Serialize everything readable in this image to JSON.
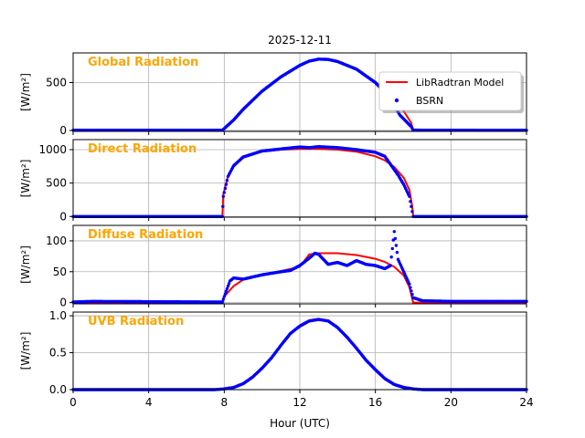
{
  "figure": {
    "title": "2025-12-11",
    "xlabel": "Hour (UTC)"
  },
  "colors": {
    "model": "#ff0000",
    "measured": "#0000ff",
    "panel_label": "#ffa500",
    "grid": "#b0b0b0",
    "axis": "#000000"
  },
  "chart_data": [
    {
      "type": "line",
      "label": "Global Radiation",
      "ylabel": "[W/m²]",
      "xlim": [
        0,
        24
      ],
      "ylim": [
        -10,
        810
      ],
      "xticks": [
        0,
        4,
        8,
        12,
        16,
        20,
        24
      ],
      "yticks": [
        0,
        500
      ],
      "ytick_labels": [
        "0",
        "500"
      ],
      "legend": {
        "position": "top-right",
        "entries": [
          "LibRadtran Model",
          "BSRN"
        ]
      },
      "series": [
        {
          "name": "LibRadtran Model",
          "x": [
            0,
            7.9,
            8.0,
            8.5,
            9,
            10,
            11,
            12,
            12.5,
            13,
            13.5,
            14,
            15,
            16,
            16.5,
            17,
            17.5,
            17.9,
            18.0,
            24
          ],
          "y": [
            0,
            0,
            18,
            115,
            230,
            415,
            565,
            680,
            720,
            740,
            738,
            718,
            640,
            505,
            420,
            315,
            200,
            80,
            0,
            0
          ]
        },
        {
          "name": "BSRN",
          "x": [
            0,
            7.9,
            8.0,
            8.5,
            9,
            10,
            11,
            12,
            12.5,
            13,
            13.5,
            14,
            15,
            16,
            16.5,
            17,
            17.3,
            17.6,
            17.9,
            18.0,
            24
          ],
          "y": [
            2,
            2,
            20,
            110,
            220,
            410,
            560,
            680,
            725,
            745,
            742,
            720,
            640,
            500,
            400,
            260,
            160,
            100,
            40,
            3,
            1
          ]
        }
      ]
    },
    {
      "type": "line",
      "label": "Direct Radiation",
      "ylabel": "[W/m²]",
      "xlim": [
        0,
        24
      ],
      "ylim": [
        -10,
        1150
      ],
      "xticks": [
        0,
        4,
        8,
        12,
        16,
        20,
        24
      ],
      "yticks": [
        0,
        500,
        1000
      ],
      "ytick_labels": [
        "0",
        "500",
        "1000"
      ],
      "series": [
        {
          "name": "LibRadtran Model",
          "x": [
            0,
            7.9,
            7.95,
            8.2,
            8.5,
            9,
            10,
            11,
            12,
            13,
            14,
            15,
            16,
            16.5,
            17,
            17.5,
            17.8,
            17.95,
            18.0,
            24
          ],
          "y": [
            0,
            0,
            330,
            610,
            760,
            880,
            970,
            1000,
            1010,
            1010,
            1000,
            970,
            900,
            840,
            740,
            580,
            400,
            150,
            0,
            0
          ]
        },
        {
          "name": "BSRN",
          "x": [
            0,
            7.9,
            7.95,
            8.2,
            8.5,
            9,
            10,
            11,
            12,
            12.5,
            13,
            14,
            15,
            16,
            16.5,
            17,
            17.2,
            17.5,
            17.8,
            18.0,
            24
          ],
          "y": [
            0,
            0,
            300,
            600,
            760,
            890,
            980,
            1010,
            1040,
            1030,
            1045,
            1030,
            1000,
            960,
            900,
            700,
            620,
            480,
            300,
            0,
            0
          ]
        }
      ]
    },
    {
      "type": "line",
      "label": "Diffuse Radiation",
      "ylabel": "[W/m²]",
      "xlim": [
        0,
        24
      ],
      "ylim": [
        -2,
        125
      ],
      "xticks": [
        0,
        4,
        8,
        12,
        16,
        20,
        24
      ],
      "yticks": [
        0,
        50,
        100
      ],
      "ytick_labels": [
        "0",
        "50",
        "100"
      ],
      "series": [
        {
          "name": "LibRadtran Model",
          "x": [
            0,
            7.9,
            8.0,
            8.5,
            9,
            10,
            11,
            12,
            12.5,
            13,
            14,
            15,
            16,
            16.5,
            17,
            17.5,
            17.8,
            18.0,
            24
          ],
          "y": [
            0,
            0,
            10,
            27,
            37,
            45,
            51,
            58,
            78,
            80,
            80,
            77,
            71,
            66,
            58,
            44,
            25,
            0,
            0
          ]
        },
        {
          "name": "BSRN",
          "x": [
            0,
            1,
            7.9,
            8.0,
            8.3,
            8.5,
            9,
            10,
            11,
            11.5,
            12,
            12.5,
            12.8,
            13,
            13.5,
            14,
            14.5,
            15,
            15.5,
            16,
            16.5,
            16.8,
            17.0,
            17.2,
            17.5,
            17.8,
            18.0,
            18.5,
            20,
            24
          ],
          "y": [
            1,
            2,
            1,
            10,
            35,
            40,
            38,
            45,
            50,
            52,
            60,
            72,
            80,
            78,
            62,
            65,
            60,
            68,
            62,
            60,
            55,
            60,
            115,
            70,
            50,
            30,
            8,
            3,
            2,
            2
          ]
        }
      ]
    },
    {
      "type": "line",
      "label": "UVB Radiation",
      "ylabel": "[W/m²]",
      "xlim": [
        0,
        24
      ],
      "ylim": [
        0,
        1.05
      ],
      "xticks": [
        0,
        4,
        8,
        12,
        16,
        20,
        24
      ],
      "xtick_labels": [
        "0",
        "4",
        "8",
        "12",
        "16",
        "20",
        "24"
      ],
      "yticks": [
        0,
        0.5,
        1.0
      ],
      "ytick_labels": [
        "0.0",
        "0.5",
        "1.0"
      ],
      "series": [
        {
          "name": "LibRadtran Model",
          "x": [
            0,
            7.5,
            8,
            8.5,
            9,
            9.5,
            10,
            10.5,
            11,
            11.5,
            12,
            12.5,
            13,
            13.5,
            14,
            14.5,
            15,
            15.5,
            16,
            16.5,
            17,
            17.5,
            18,
            18.5,
            24
          ],
          "y": [
            0,
            0,
            0.01,
            0.03,
            0.08,
            0.17,
            0.29,
            0.44,
            0.6,
            0.75,
            0.87,
            0.94,
            0.96,
            0.93,
            0.84,
            0.71,
            0.56,
            0.4,
            0.26,
            0.14,
            0.06,
            0.02,
            0.005,
            0,
            0
          ]
        },
        {
          "name": "BSRN",
          "x": [
            0,
            7.5,
            8,
            8.5,
            9,
            9.5,
            10,
            10.5,
            11,
            11.5,
            12,
            12.5,
            13,
            13.5,
            14,
            14.5,
            15,
            15.5,
            16,
            16.5,
            17,
            17.5,
            18,
            18.5,
            24
          ],
          "y": [
            0,
            0,
            0.01,
            0.03,
            0.08,
            0.17,
            0.29,
            0.43,
            0.6,
            0.76,
            0.86,
            0.93,
            0.95,
            0.93,
            0.84,
            0.71,
            0.56,
            0.4,
            0.27,
            0.15,
            0.07,
            0.03,
            0.01,
            0,
            0
          ]
        }
      ]
    }
  ]
}
